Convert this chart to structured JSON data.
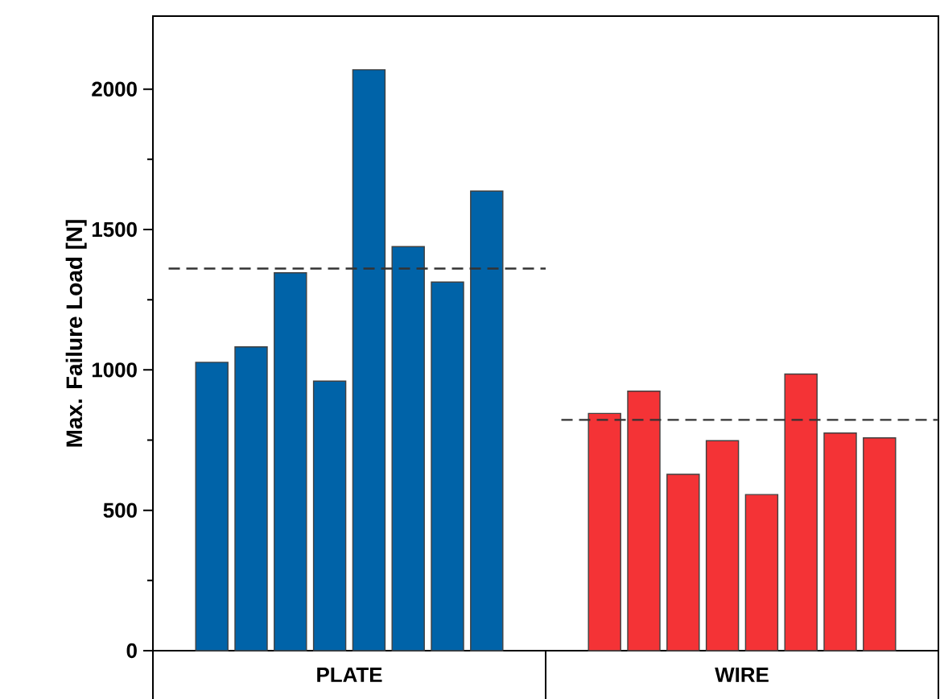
{
  "chart_data": {
    "type": "bar",
    "ylabel": "Max. Failure Load [N]",
    "categories": [
      "PLATE",
      "WIRE"
    ],
    "series": [
      {
        "colors": [
          "#0063a8",
          "#f43336"
        ],
        "values": [
          1027,
          845
        ]
      },
      {
        "colors": [
          "#0063a8",
          "#f43336"
        ],
        "values": [
          1082,
          924
        ]
      },
      {
        "colors": [
          "#0063a8",
          "#f43336"
        ],
        "values": [
          1346,
          628
        ]
      },
      {
        "colors": [
          "#0063a8",
          "#f43336"
        ],
        "values": [
          960,
          748
        ]
      },
      {
        "colors": [
          "#0063a8",
          "#f43336"
        ],
        "values": [
          2069,
          556
        ]
      },
      {
        "colors": [
          "#0063a8",
          "#f43336"
        ],
        "values": [
          1439,
          985
        ]
      },
      {
        "colors": [
          "#0063a8",
          "#f43336"
        ],
        "values": [
          1313,
          775
        ]
      },
      {
        "colors": [
          "#0063a8",
          "#f43336"
        ],
        "values": [
          1637,
          758
        ]
      }
    ],
    "ylim": [
      0,
      2260
    ],
    "yticks": [
      0,
      500,
      1000,
      1500,
      2000
    ],
    "grid": false,
    "ref_lines": [
      {
        "axis": "y",
        "value": 1361,
        "line_style": "dashed",
        "color": "#333333"
      },
      {
        "axis": "y",
        "value": 822,
        "line_style": "dashed",
        "color": "#333333"
      }
    ]
  }
}
